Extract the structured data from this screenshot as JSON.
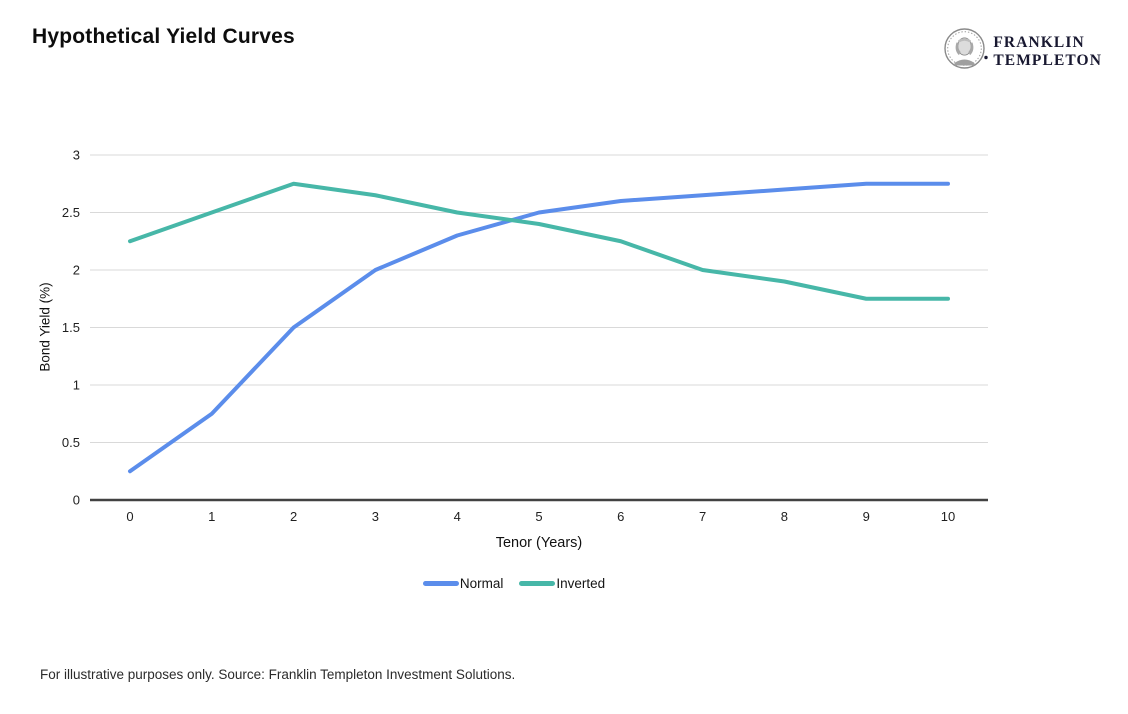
{
  "page": {
    "title": "Hypothetical Yield Curves",
    "footnote": "For illustrative purposes only. Source: Franklin Templeton Investment Solutions."
  },
  "logo": {
    "brand_line1": "FRANKLIN",
    "brand_line2": "TEMPLETON",
    "medallion_icon": "franklin-portrait-medallion",
    "text_color": "#181830"
  },
  "chart_data": {
    "type": "line",
    "title": "Hypothetical Yield Curves",
    "x": [
      0,
      1,
      2,
      3,
      4,
      5,
      6,
      7,
      8,
      9,
      10
    ],
    "xlabel": "Tenor (Years)",
    "ylabel": "Bond Yield (%)",
    "ylim": [
      0,
      3
    ],
    "yticks": [
      0,
      0.5,
      1,
      1.5,
      2,
      2.5,
      3
    ],
    "grid": true,
    "legend_position": "bottom",
    "series": [
      {
        "name": "Normal",
        "color": "#5b8deb",
        "values": [
          0.25,
          0.75,
          1.5,
          2.0,
          2.3,
          2.5,
          2.6,
          2.65,
          2.7,
          2.75,
          2.75
        ]
      },
      {
        "name": "Inverted",
        "color": "#47b7a8",
        "values": [
          2.25,
          2.5,
          2.75,
          2.65,
          2.5,
          2.4,
          2.25,
          2.0,
          1.9,
          1.75,
          1.75
        ]
      }
    ],
    "axis_colors": {
      "gridline": "#d9d9d9",
      "baseline": "#424242",
      "tick_text": "#1f1f1f"
    }
  }
}
